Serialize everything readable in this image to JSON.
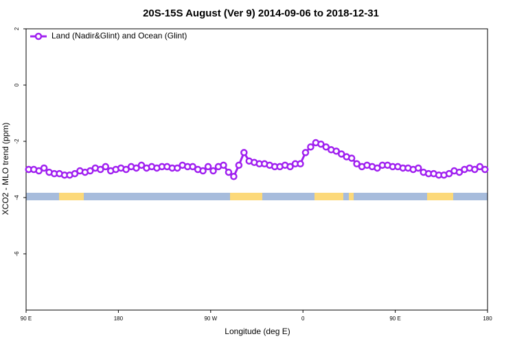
{
  "chart_data": {
    "type": "line",
    "title": "20S-15S August (Ver 9)   2014-09-06 to 2018-12-31",
    "x_label": "Longitude (deg E)",
    "y_label": "XCO2 - MLO trend (ppm)",
    "xlim": [
      90,
      540
    ],
    "ylim": [
      -8,
      2
    ],
    "xticks": [
      {
        "value": 90,
        "label": "90 E"
      },
      180,
      {
        "value": 270,
        "label": "90 W"
      },
      {
        "value": 360,
        "label": "0"
      },
      {
        "value": 450,
        "label": "90 E"
      },
      {
        "value": 540,
        "label": "180"
      }
    ],
    "yticks": [
      2,
      0,
      -2,
      -4,
      -6
    ],
    "legend": "top-left",
    "x": [
      92.5,
      97.5,
      102.5,
      107.5,
      112.5,
      117.5,
      122.5,
      127.5,
      132.5,
      137.5,
      142.5,
      147.5,
      152.5,
      157.5,
      162.5,
      167.5,
      172.5,
      177.5,
      182.5,
      187.5,
      192.5,
      197.5,
      202.5,
      207.5,
      212.5,
      217.5,
      222.5,
      227.5,
      232.5,
      237.5,
      242.5,
      247.5,
      252.5,
      257.5,
      262.5,
      267.5,
      272.5,
      277.5,
      282.5,
      287.5,
      292.5,
      297.5,
      302.5,
      307.5,
      312.5,
      317.5,
      322.5,
      327.5,
      332.5,
      337.5,
      342.5,
      347.5,
      352.5,
      357.5,
      362.5,
      367.5,
      372.5,
      377.5,
      382.5,
      387.5,
      392.5,
      397.5,
      402.5,
      407.5,
      412.5,
      417.5,
      422.5,
      427.5,
      432.5,
      437.5,
      442.5,
      447.5,
      452.5,
      457.5,
      462.5,
      467.5,
      472.5,
      477.5,
      482.5,
      487.5,
      492.5,
      497.5,
      502.5,
      507.5,
      512.5,
      517.5,
      522.5,
      527.5,
      532.5,
      537.5
    ],
    "series": [
      {
        "name": "Land (Nadir&Glint) and Ocean (Glint)",
        "color": "#a020f0",
        "values": [
          -3.0,
          -3.0,
          -3.05,
          -2.95,
          -3.1,
          -3.15,
          -3.15,
          -3.2,
          -3.2,
          -3.15,
          -3.05,
          -3.1,
          -3.05,
          -2.95,
          -3.0,
          -2.9,
          -3.05,
          -3.0,
          -2.95,
          -3.0,
          -2.9,
          -2.95,
          -2.85,
          -2.95,
          -2.9,
          -2.95,
          -2.9,
          -2.9,
          -2.95,
          -2.95,
          -2.85,
          -2.9,
          -2.9,
          -3.0,
          -3.05,
          -2.9,
          -3.05,
          -2.9,
          -2.85,
          -3.1,
          -3.25,
          -2.85,
          -2.4,
          -2.7,
          -2.75,
          -2.8,
          -2.8,
          -2.85,
          -2.9,
          -2.9,
          -2.85,
          -2.9,
          -2.8,
          -2.8,
          -2.4,
          -2.2,
          -2.05,
          -2.1,
          -2.2,
          -2.3,
          -2.35,
          -2.45,
          -2.55,
          -2.6,
          -2.8,
          -2.9,
          -2.85,
          -2.9,
          -2.95,
          -2.85,
          -2.85,
          -2.9,
          -2.9,
          -2.95,
          -2.95,
          -3.0,
          -2.95,
          -3.1,
          -3.15,
          -3.15,
          -3.2,
          -3.2,
          -3.15,
          -3.05,
          -3.1,
          -3.0,
          -2.95,
          -3.0,
          -2.9,
          -3.0
        ]
      }
    ]
  }
}
